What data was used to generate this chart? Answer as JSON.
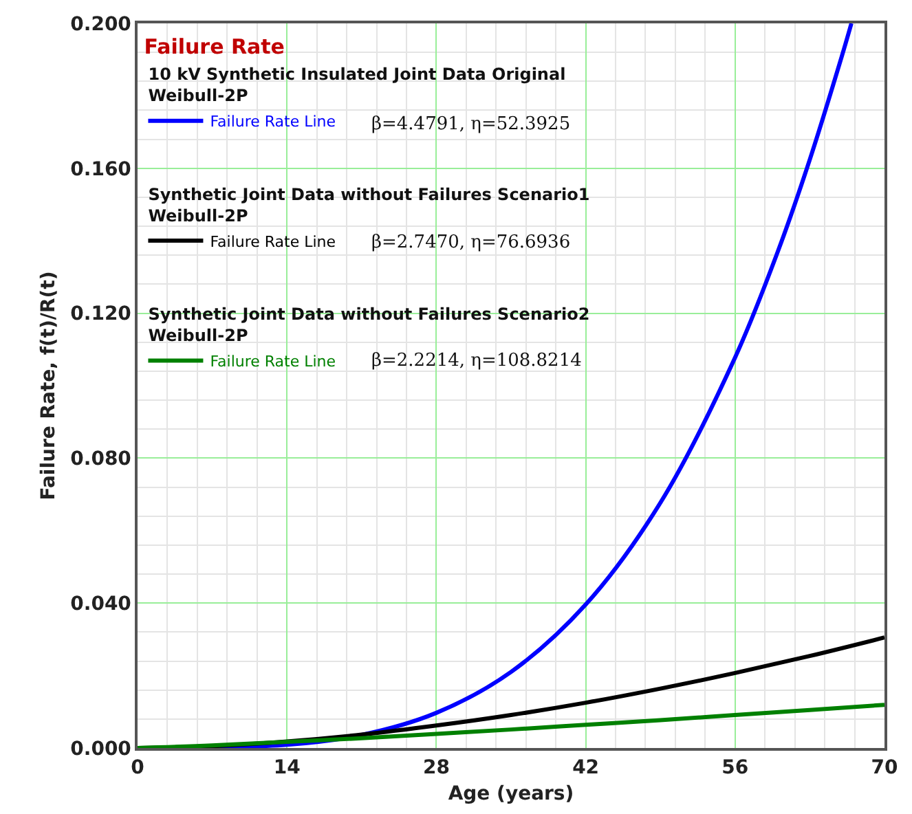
{
  "chart_data": {
    "type": "line",
    "legend_title": "Failure Rate",
    "xlabel": "Age (years)",
    "ylabel": "Failure Rate, f(t)/R(t)",
    "xlim": [
      0,
      70
    ],
    "xticks": [
      0,
      14,
      28,
      42,
      56,
      70
    ],
    "ylim": [
      0,
      0.2
    ],
    "yticks": [
      {
        "value": 0,
        "label": "0.000"
      },
      {
        "value": 0.04,
        "label": "0.040"
      },
      {
        "value": 0.08,
        "label": "0.080"
      },
      {
        "value": 0.12,
        "label": "0.120"
      },
      {
        "value": 0.16,
        "label": "0.160"
      },
      {
        "value": 0.2,
        "label": "0.200"
      }
    ],
    "grid": true,
    "legend": "top left",
    "marker": "none",
    "line_style": "solid",
    "annotations": [
      "10 kV Synthetic Insulated Joint Data Original\nWeibull-2P",
      "β=4.4791, η=52.3925",
      "Synthetic Joint Data without Failures Scenario1\nWeibull-2P",
      "β=2.7470, η=76.6936",
      "Synthetic Joint Data without Failures Scenario2\nWeibull-2P",
      "β=2.2214, η=108.8214"
    ],
    "series": [
      {
        "name": "Failure Rate Line",
        "color": "#0000ff",
        "x": [
          0,
          14,
          21,
          28,
          35,
          42,
          49,
          56,
          60,
          63,
          66,
          66.9
        ],
        "values": [
          0,
          0.0009,
          0.0036,
          0.0097,
          0.021,
          0.0396,
          0.0677,
          0.1078,
          0.137,
          0.1624,
          0.1909,
          0.2
        ]
      },
      {
        "name": "Failure Rate Line",
        "color": "#000000",
        "x": [
          0,
          7,
          14,
          21,
          28,
          35,
          42,
          49,
          56,
          63,
          70
        ],
        "values": [
          0,
          0.0005,
          0.0018,
          0.0037,
          0.0062,
          0.0091,
          0.0125,
          0.0164,
          0.0207,
          0.0254,
          0.0305
        ]
      },
      {
        "name": "Failure Rate Line",
        "color": "#008000",
        "x": [
          0,
          7,
          14,
          21,
          28,
          35,
          42,
          49,
          56,
          63,
          70
        ],
        "values": [
          0,
          0.0007,
          0.0017,
          0.0027,
          0.0039,
          0.0051,
          0.0064,
          0.0077,
          0.0091,
          0.0105,
          0.0119
        ]
      }
    ]
  }
}
